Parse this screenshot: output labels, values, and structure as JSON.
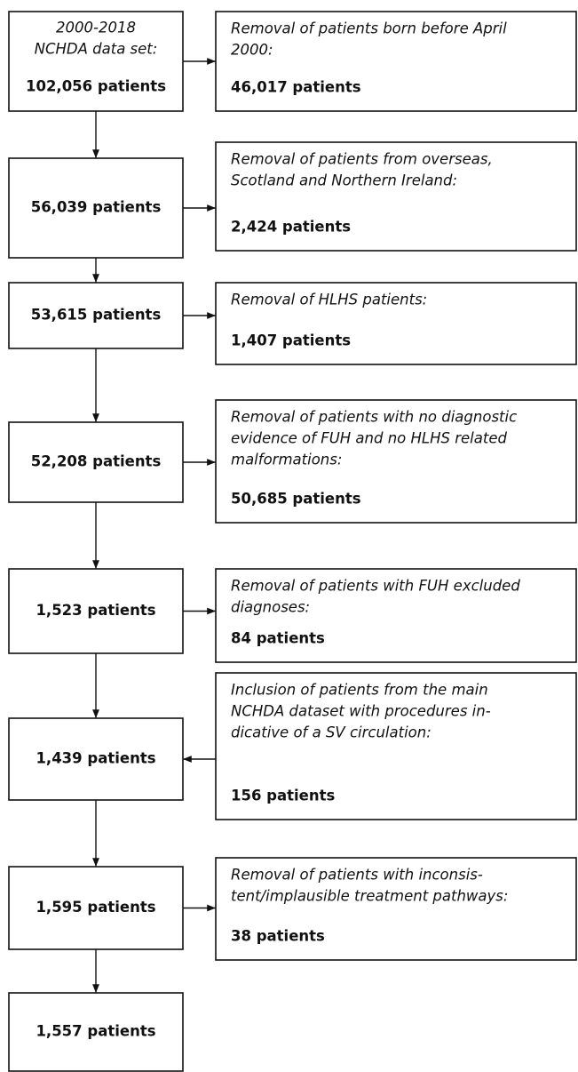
{
  "boxes": [
    {
      "lines": [
        "2000-2018",
        "NCHDA data set:"
      ],
      "count": "102,056 patients"
    },
    {
      "count": "56,039 patients"
    },
    {
      "count": "53,615 patients"
    },
    {
      "count": "52,208 patients"
    },
    {
      "count": "1,523 patients"
    },
    {
      "count": "1,439 patients"
    },
    {
      "count": "1,595 patients"
    },
    {
      "count": "1,557 patients"
    }
  ],
  "steps": [
    {
      "lines": [
        "Removal of patients born before April",
        "2000:"
      ],
      "count": "46,017 patients"
    },
    {
      "lines": [
        "Removal of patients from overseas,",
        "Scotland and Northern Ireland:"
      ],
      "count": "2,424 patients"
    },
    {
      "lines": [
        "Removal of HLHS patients:"
      ],
      "count": "1,407 patients"
    },
    {
      "lines": [
        "Removal of patients with no diagnostic",
        "evidence of FUH and no HLHS related",
        "malformations:"
      ],
      "count": "50,685 patients"
    },
    {
      "lines": [
        "Removal of patients with FUH excluded",
        "diagnoses:"
      ],
      "count": "84 patients"
    },
    {
      "lines": [
        "Inclusion of patients from the main",
        "NCHDA dataset with procedures in-",
        "dicative of a SV circulation:"
      ],
      "count": "156 patients"
    },
    {
      "lines": [
        "Removal of patients with inconsis-",
        "tent/implausible treatment pathways:"
      ],
      "count": "38 patients"
    }
  ]
}
